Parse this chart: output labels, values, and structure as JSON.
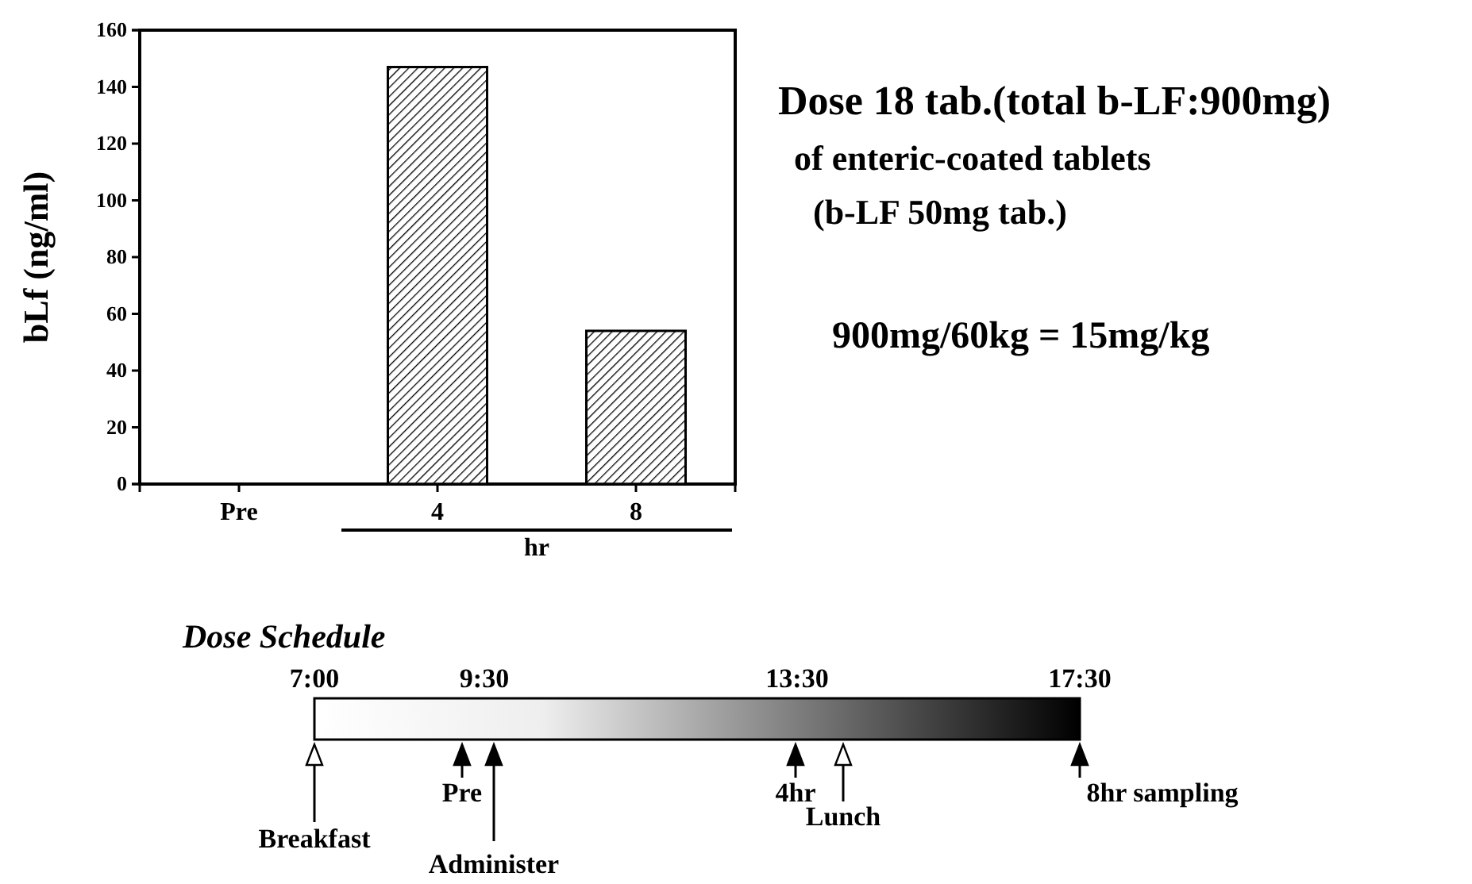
{
  "chart_data": {
    "type": "bar",
    "ylabel": "bLf (ng/ml)",
    "xlabel": "hr",
    "categories": [
      "Pre",
      "4",
      "8"
    ],
    "values": [
      0,
      147,
      54
    ],
    "color": "#000000",
    "ylim": [
      0,
      160
    ],
    "yticks": [
      0,
      20,
      40,
      60,
      80,
      100,
      120,
      140,
      160
    ],
    "grid": false,
    "annotations": [
      "Dose 18 tab.(total b-LF:900mg)",
      "of enteric-coated tablets",
      "(b-LF 50mg tab.)",
      "900mg/60kg = 15mg/kg",
      "Dose Schedule",
      "7:00",
      "9:30",
      "13:30",
      "17:30",
      "Breakfast",
      "Pre",
      "Administer",
      "4hr",
      "Lunch",
      "8hr sampling"
    ]
  }
}
